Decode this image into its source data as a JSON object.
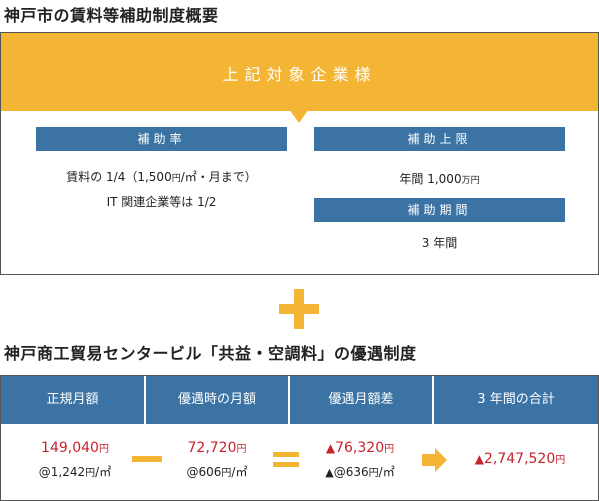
{
  "section1": {
    "title": "神戸市の賃料等補助制度概要",
    "banner": "上記対象企業様",
    "rate": {
      "label": "補助率",
      "line1_main": "賃料の 1/4（1,500",
      "line1_unit": "円",
      "line1_tail": "/㎡・月まで）",
      "line2": "IT 関連企業等は 1/2"
    },
    "limit": {
      "label": "補助上限",
      "value_main": "年間 1,000",
      "value_unit": "万円"
    },
    "period": {
      "label": "補助期間",
      "value": "3 年間"
    }
  },
  "section2": {
    "title": "神戸商工貿易センタービル「共益・空調料」の優遇制度",
    "headers": [
      "正規月額",
      "優遇時の月額",
      "優遇月額差",
      "3 年間の合計"
    ],
    "regular": {
      "amount": "149,040",
      "unit": "円",
      "per_main": "@1,242",
      "per_unit": "円",
      "per_tail": "/㎡"
    },
    "preferential": {
      "amount": "72,720",
      "unit": "円",
      "per_main": "@606",
      "per_unit": "円",
      "per_tail": "/㎡"
    },
    "difference": {
      "triangle": "▲",
      "amount": "76,320",
      "unit": "円",
      "per_triangle": "▲",
      "per_main": "@636",
      "per_unit": "円",
      "per_tail": "/㎡"
    },
    "total": {
      "triangle": "▲",
      "amount": "2,747,520",
      "unit": "円"
    }
  },
  "colors": {
    "accent": "#f4b535",
    "header_blue": "#3b73a4",
    "red": "#c8222b"
  }
}
